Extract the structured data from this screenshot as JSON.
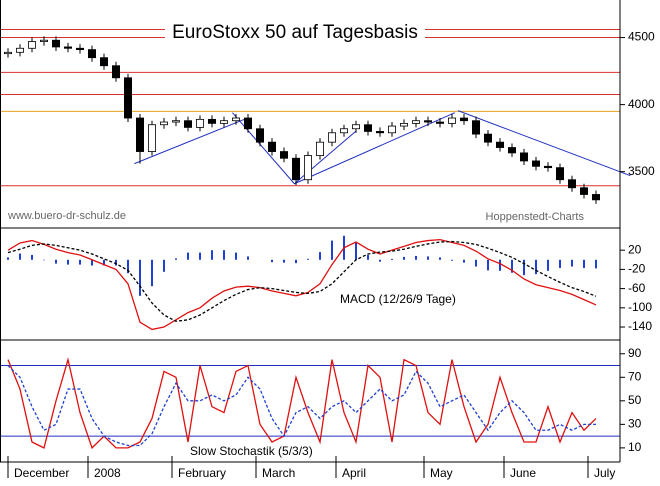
{
  "chart_data": [
    {
      "type": "candlestick",
      "title": "EuroStoxx 50 auf Tagesbasis",
      "source": "www.buero-dr-schulz.de",
      "credit": "Hoppenstedt-Charts",
      "x": [
        5,
        8,
        11,
        14,
        17,
        20,
        23,
        26,
        29,
        32,
        35,
        38,
        41,
        44,
        47,
        50,
        53,
        56,
        59,
        62,
        65,
        68,
        71,
        74,
        77,
        80,
        83,
        86,
        89,
        92,
        95,
        98,
        101,
        104,
        107,
        110,
        113,
        116,
        119,
        122,
        125,
        128,
        131,
        134,
        137,
        140,
        143,
        146,
        149,
        152
      ],
      "open": [
        4380,
        4390,
        4420,
        4470,
        4480,
        4430,
        4420,
        4410,
        4350,
        4290,
        4200,
        3900,
        3650,
        3850,
        3870,
        3880,
        3830,
        3890,
        3860,
        3880,
        3900,
        3820,
        3720,
        3650,
        3600,
        3440,
        3620,
        3720,
        3790,
        3820,
        3850,
        3800,
        3790,
        3840,
        3860,
        3880,
        3870,
        3860,
        3900,
        3880,
        3780,
        3720,
        3680,
        3640,
        3580,
        3540,
        3530,
        3440,
        3380,
        3330
      ],
      "high": [
        4420,
        4450,
        4500,
        4510,
        4510,
        4460,
        4450,
        4440,
        4380,
        4320,
        4230,
        3930,
        3880,
        3900,
        3910,
        3910,
        3920,
        3920,
        3910,
        3930,
        3930,
        3850,
        3750,
        3680,
        3630,
        3650,
        3750,
        3820,
        3850,
        3880,
        3880,
        3830,
        3870,
        3890,
        3910,
        3910,
        3900,
        3930,
        3930,
        3910,
        3810,
        3750,
        3710,
        3670,
        3610,
        3570,
        3560,
        3470,
        3410,
        3360
      ],
      "low": [
        4350,
        4360,
        4390,
        4440,
        4400,
        4390,
        4380,
        4320,
        4260,
        4170,
        3870,
        3560,
        3620,
        3820,
        3840,
        3800,
        3800,
        3830,
        3830,
        3850,
        3790,
        3690,
        3620,
        3570,
        3400,
        3410,
        3590,
        3690,
        3760,
        3790,
        3770,
        3760,
        3760,
        3810,
        3830,
        3840,
        3830,
        3830,
        3850,
        3750,
        3690,
        3650,
        3610,
        3550,
        3510,
        3500,
        3410,
        3350,
        3300,
        3260
      ],
      "close": [
        4390,
        4420,
        4470,
        4480,
        4430,
        4420,
        4410,
        4350,
        4290,
        4200,
        3900,
        3650,
        3850,
        3870,
        3880,
        3830,
        3890,
        3860,
        3880,
        3900,
        3820,
        3720,
        3650,
        3600,
        3440,
        3620,
        3720,
        3790,
        3820,
        3850,
        3800,
        3790,
        3840,
        3860,
        3880,
        3870,
        3860,
        3900,
        3880,
        3780,
        3720,
        3680,
        3640,
        3580,
        3540,
        3530,
        3440,
        3380,
        3330,
        3290
      ],
      "xlim": [
        3,
        158
      ],
      "ylim": [
        3080,
        4780
      ],
      "yticks": [
        3500,
        4000,
        4500
      ],
      "hlines": [
        {
          "value": 4560,
          "color": "#d83030"
        },
        {
          "value": 4500,
          "color": "#d83030"
        },
        {
          "value": 4240,
          "color": "#d83030"
        },
        {
          "value": 4075,
          "color": "#d83030"
        },
        {
          "value": 3950,
          "color": "#e8a020"
        },
        {
          "value": 3395,
          "color": "#d83030"
        }
      ],
      "trendlines": [
        {
          "x": [
            36.6,
            64.5
          ],
          "y": [
            3560,
            3895
          ]
        },
        {
          "x": [
            61.1,
            76.6
          ],
          "y": [
            3940,
            3410
          ]
        },
        {
          "x": [
            76.6,
            116.7
          ],
          "y": [
            3410,
            3940
          ]
        },
        {
          "x": [
            76.6,
            92.1
          ],
          "y": [
            3410,
            3805
          ]
        },
        {
          "x": [
            117.5,
            160.6
          ],
          "y": [
            3955,
            3470
          ]
        }
      ],
      "trend_color": "#2030c0"
    },
    {
      "type": "macd",
      "label": "MACD (12/26/9 Tage)",
      "series": [
        {
          "name": "MACD",
          "color": "#e01010",
          "values": [
            20,
            35,
            40,
            32,
            22,
            15,
            10,
            0,
            -10,
            -20,
            -50,
            -130,
            -145,
            -140,
            -125,
            -110,
            -100,
            -80,
            -65,
            -57,
            -55,
            -58,
            -65,
            -70,
            -75,
            -68,
            -50,
            -10,
            25,
            37,
            22,
            12,
            20,
            28,
            36,
            40,
            42,
            36,
            30,
            18,
            2,
            -8,
            -22,
            -40,
            -52,
            -58,
            -64,
            -72,
            -83,
            -94
          ]
        },
        {
          "name": "Signal",
          "color": "#000000",
          "values": [
            15,
            22,
            30,
            33,
            30,
            25,
            20,
            12,
            2,
            -8,
            -22,
            -55,
            -90,
            -115,
            -128,
            -125,
            -115,
            -100,
            -85,
            -72,
            -62,
            -58,
            -60,
            -64,
            -68,
            -70,
            -66,
            -50,
            -25,
            0,
            12,
            16,
            18,
            22,
            28,
            33,
            37,
            38,
            36,
            32,
            24,
            15,
            5,
            -8,
            -22,
            -35,
            -47,
            -58,
            -66,
            -76
          ]
        }
      ],
      "histogram": [
        5,
        13,
        10,
        -1,
        -8,
        -10,
        -10,
        -12,
        -12,
        -12,
        -28,
        -75,
        -55,
        -25,
        3,
        15,
        15,
        20,
        20,
        15,
        7,
        0,
        -5,
        -6,
        -7,
        2,
        16,
        40,
        50,
        37,
        10,
        -4,
        2,
        6,
        8,
        7,
        5,
        -2,
        -6,
        -14,
        -22,
        -23,
        -27,
        -32,
        -30,
        -23,
        -17,
        -14,
        -17,
        -18
      ],
      "histogram_color": "#2040d0",
      "ylim": [
        -167,
        62
      ],
      "yticks": [
        20,
        -20,
        -60,
        -100,
        -140
      ]
    },
    {
      "type": "stochastic",
      "label": "Slow Stochastik (5/3/3)",
      "series": [
        {
          "name": "%K",
          "color": "#e01010",
          "values": [
            85,
            60,
            15,
            10,
            50,
            85,
            40,
            10,
            20,
            10,
            10,
            15,
            35,
            75,
            70,
            15,
            80,
            45,
            40,
            75,
            80,
            30,
            15,
            20,
            70,
            40,
            15,
            85,
            40,
            15,
            80,
            70,
            15,
            85,
            80,
            40,
            30,
            85,
            45,
            15,
            30,
            70,
            40,
            15,
            15,
            45,
            15,
            40,
            25,
            35
          ]
        },
        {
          "name": "%D",
          "color": "#2040d0",
          "values": [
            80,
            70,
            45,
            25,
            30,
            60,
            60,
            35,
            20,
            15,
            12,
            12,
            22,
            45,
            65,
            50,
            50,
            55,
            50,
            55,
            70,
            60,
            35,
            20,
            40,
            45,
            35,
            45,
            50,
            40,
            50,
            60,
            50,
            55,
            75,
            65,
            45,
            50,
            55,
            40,
            25,
            40,
            50,
            40,
            25,
            25,
            30,
            25,
            30,
            30
          ]
        }
      ],
      "levels": [
        20,
        80
      ],
      "level_color": "#2030c0",
      "ylim": [
        -2,
        100
      ],
      "yticks": [
        10,
        30,
        50,
        70,
        90
      ],
      "xticks": [
        {
          "value": 5,
          "label": "December"
        },
        {
          "value": 25,
          "label": "2008"
        },
        {
          "value": 46,
          "label": "February"
        },
        {
          "value": 67,
          "label": "March"
        },
        {
          "value": 87,
          "label": "April"
        },
        {
          "value": 109,
          "label": "May"
        },
        {
          "value": 129,
          "label": "June"
        },
        {
          "value": 150,
          "label": "July"
        }
      ]
    }
  ]
}
